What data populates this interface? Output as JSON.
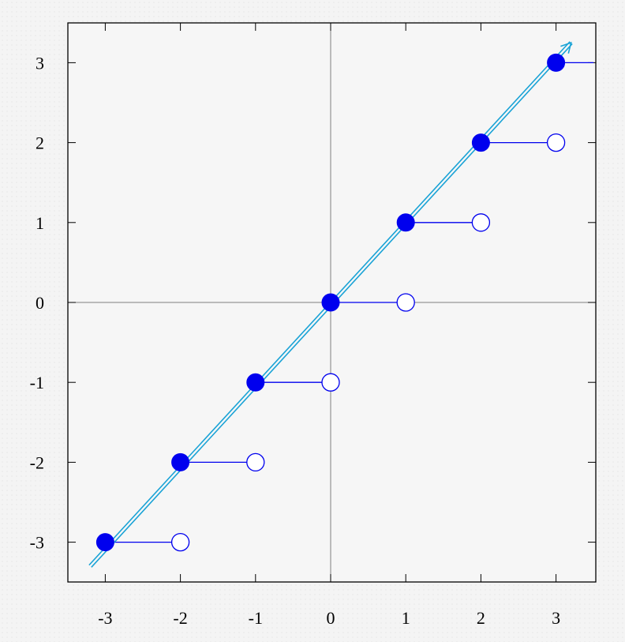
{
  "chart_data": {
    "type": "line",
    "title": "",
    "xlabel": "",
    "ylabel": "",
    "xlim": [
      -3.4,
      3.5
    ],
    "ylim": [
      -3.5,
      3.5
    ],
    "x_ticks": [
      "-3",
      "-2",
      "-1",
      "0",
      "1",
      "2",
      "3"
    ],
    "y_ticks": [
      "3",
      "2",
      "1",
      "0",
      "-1",
      "-2",
      "-3"
    ],
    "grid": false,
    "axes_through_origin": true,
    "series": [
      {
        "style": "step_function",
        "steps": [
          {
            "x_start": -3,
            "x_end": -2,
            "y": -3
          },
          {
            "x_start": -2,
            "x_end": -1,
            "y": -2
          },
          {
            "x_start": -1,
            "x_end": 0,
            "y": -1
          },
          {
            "x_start": 0,
            "x_end": 1,
            "y": 0
          },
          {
            "x_start": 1,
            "x_end": 2,
            "y": 1
          },
          {
            "x_start": 2,
            "x_end": 3,
            "y": 2
          },
          {
            "x_start": 3,
            "x_end": 3.5,
            "y": 3
          }
        ],
        "closed_points": [
          [
            -3,
            -3
          ],
          [
            -2,
            -2
          ],
          [
            -1,
            -1
          ],
          [
            0,
            0
          ],
          [
            1,
            1
          ],
          [
            2,
            2
          ],
          [
            3,
            3
          ]
        ],
        "open_points": [
          [
            -2,
            -3
          ],
          [
            -1,
            -2
          ],
          [
            0,
            -1
          ],
          [
            1,
            0
          ],
          [
            2,
            1
          ],
          [
            3,
            2
          ]
        ],
        "color": "#0000ee"
      },
      {
        "style": "line_with_arrow",
        "x": [
          -3.2,
          3.2
        ],
        "y": [
          -3.3,
          3.25
        ],
        "color": "#1aa3d6"
      }
    ],
    "colors": {
      "frame": "#000000",
      "axis": "#808080",
      "step": "#0000ee",
      "diagonal": "#1aa3d6"
    }
  }
}
